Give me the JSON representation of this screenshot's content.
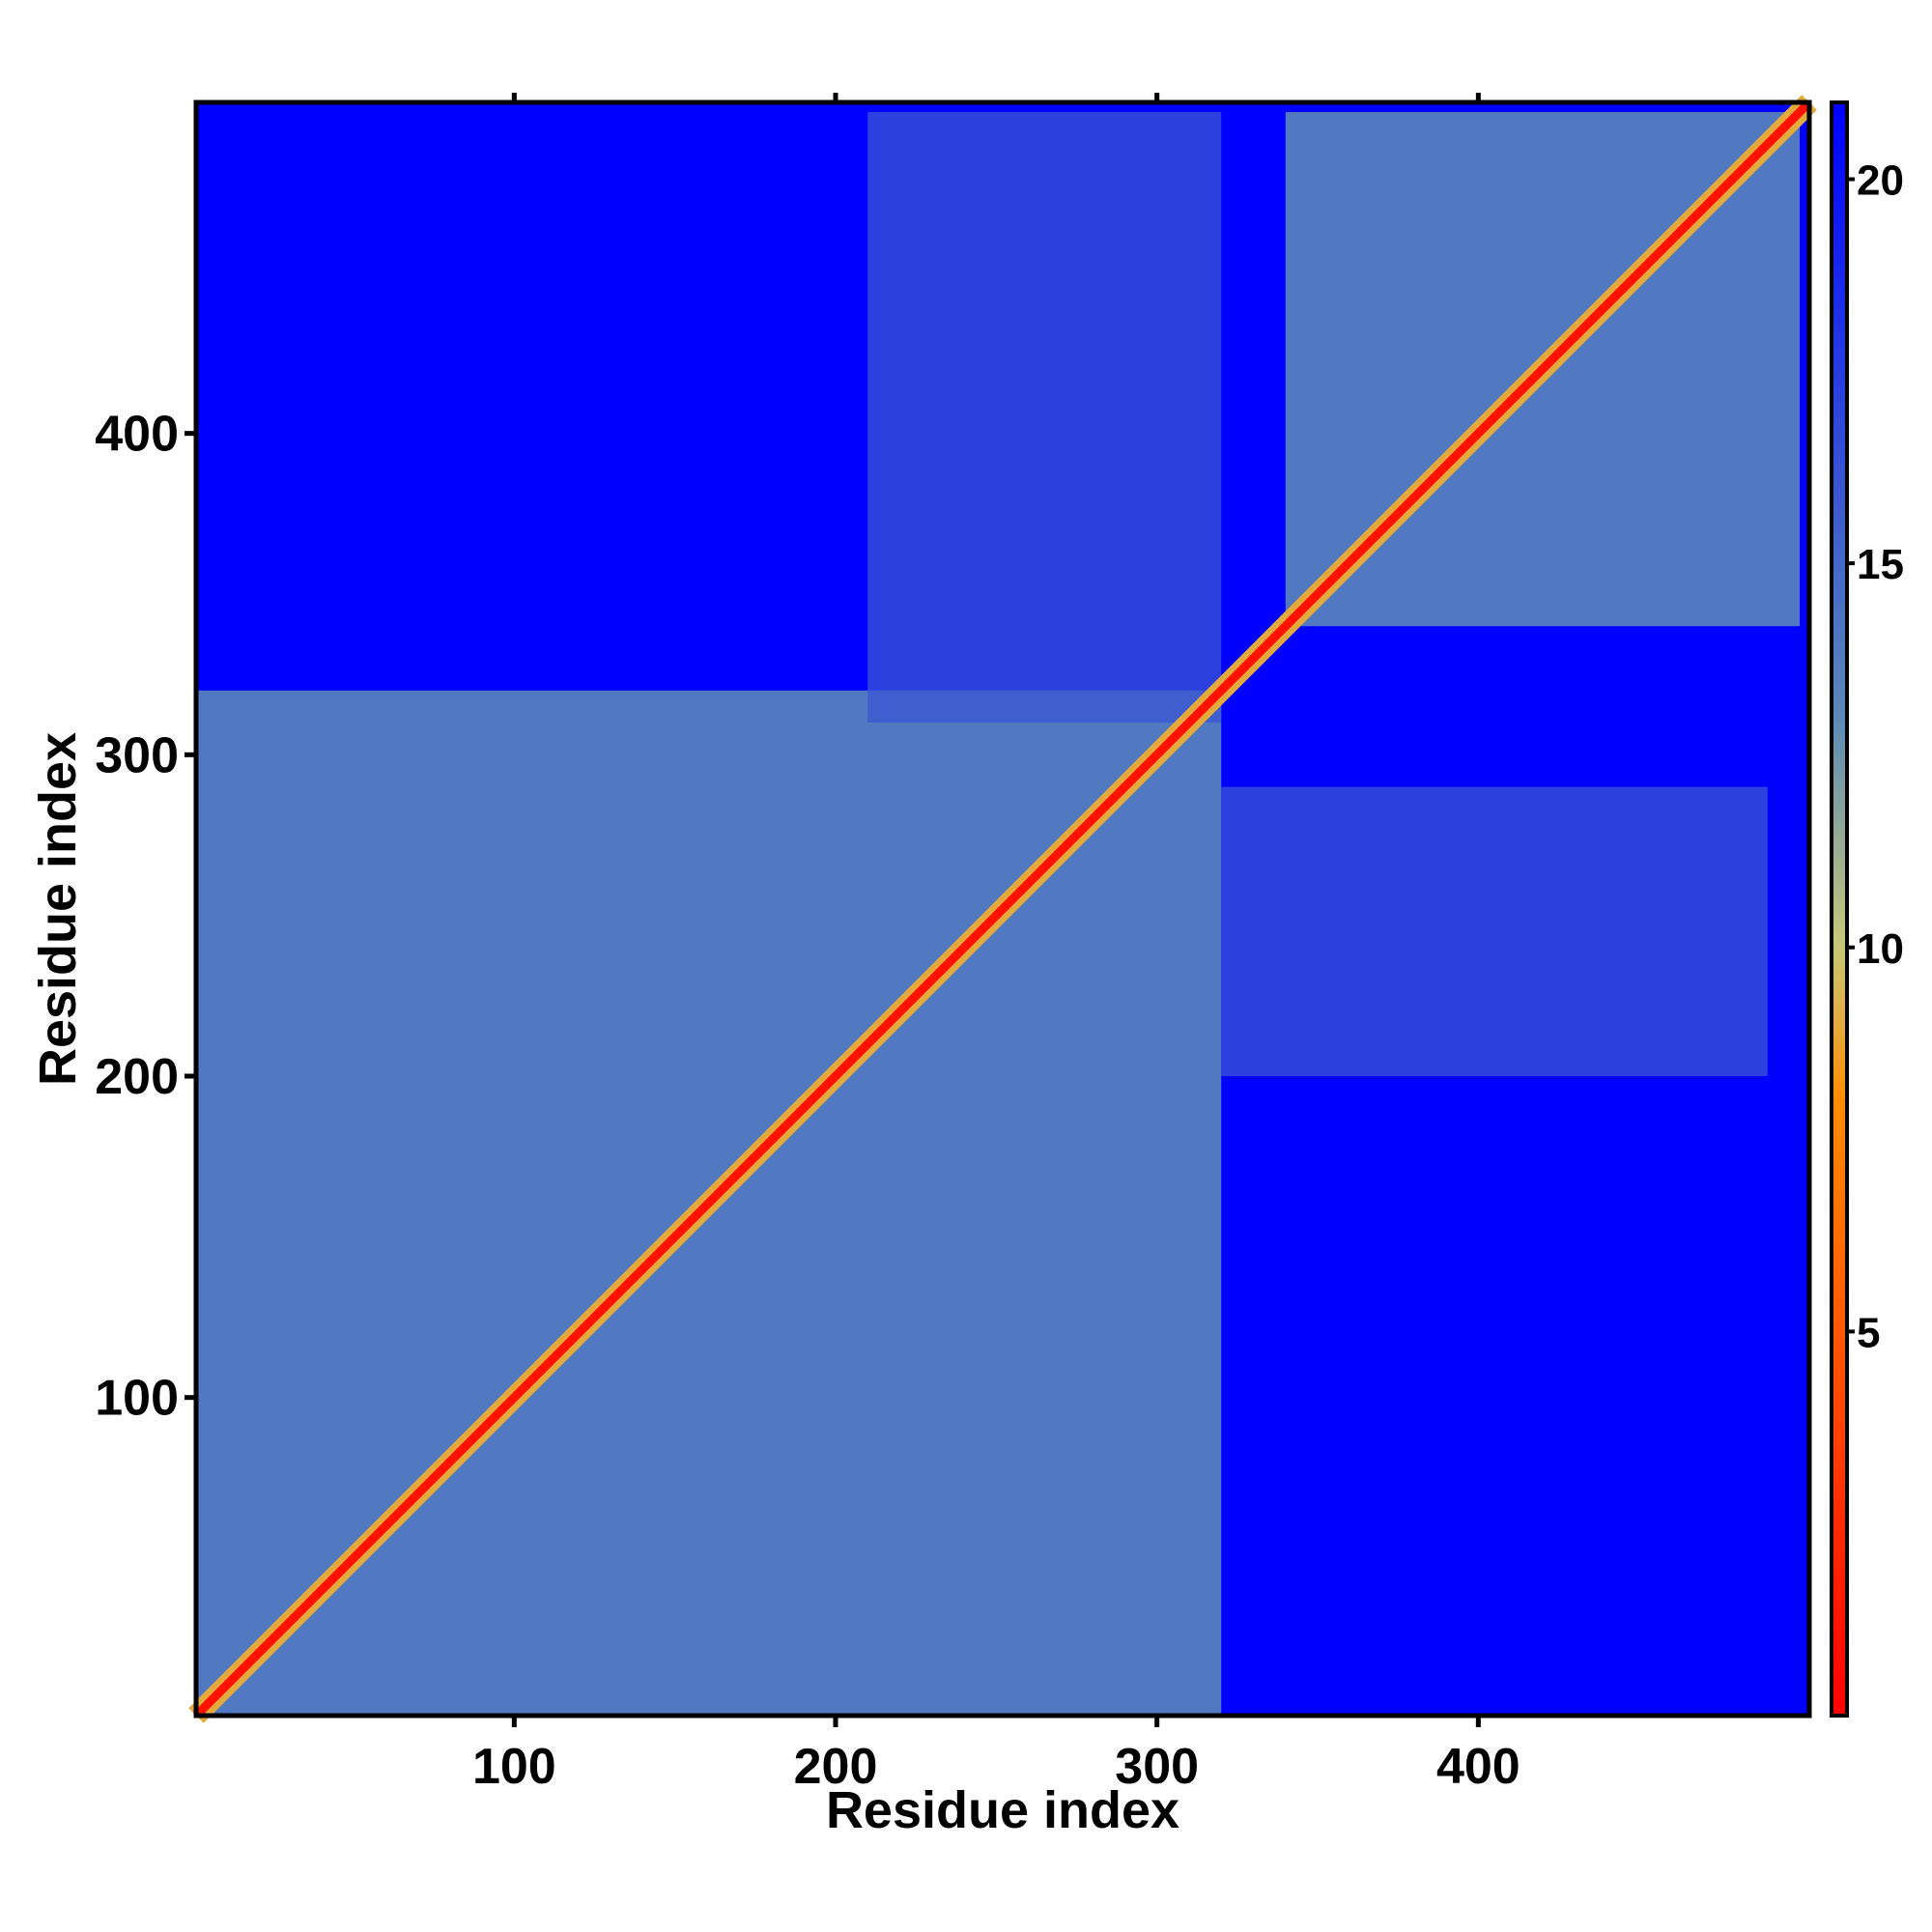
{
  "chart_data": {
    "type": "heatmap",
    "title": "",
    "xlabel": "Residue index",
    "ylabel": "Residue index",
    "xlim": [
      1,
      503
    ],
    "ylim": [
      1,
      503
    ],
    "xticks": [
      100,
      200,
      300,
      400
    ],
    "yticks": [
      100,
      200,
      300,
      400
    ],
    "colorbar": {
      "ticks": [
        5,
        10,
        15,
        20
      ],
      "range": [
        0,
        21
      ],
      "colors": [
        "#ff0000",
        "#ff8c00",
        "#c8c878",
        "#5b8ab8",
        "#0000ff"
      ],
      "stops": [
        0,
        8,
        10,
        13,
        21
      ]
    },
    "background_value": 21,
    "diagonal_value": 1,
    "domains": [
      {
        "from": 1,
        "to": 320,
        "value": 14
      },
      {
        "from": 340,
        "to": 500,
        "value": 14
      }
    ],
    "domain_contacts": [
      {
        "x_from": 210,
        "x_to": 320,
        "y_from": 310,
        "y_to": 500,
        "value": 16
      },
      {
        "x_from": 320,
        "x_to": 490,
        "y_from": 200,
        "y_to": 290,
        "value": 16
      }
    ],
    "grid": false,
    "legend": "right"
  }
}
